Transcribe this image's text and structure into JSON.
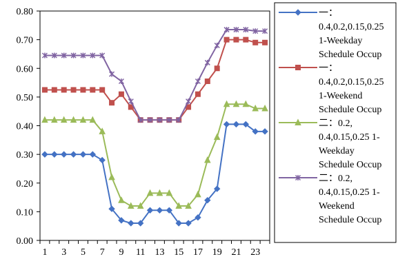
{
  "chart_data": {
    "type": "line",
    "title": "",
    "xlabel": "",
    "ylabel": "",
    "x": [
      1,
      2,
      3,
      4,
      5,
      6,
      7,
      8,
      9,
      10,
      11,
      12,
      13,
      14,
      15,
      16,
      17,
      18,
      19,
      20,
      21,
      22,
      23,
      24
    ],
    "x_tick_labels": [
      "1",
      "3",
      "5",
      "7",
      "9",
      "11",
      "13",
      "15",
      "17",
      "19",
      "21",
      "23"
    ],
    "x_tick_values": [
      1,
      3,
      5,
      7,
      9,
      11,
      13,
      15,
      17,
      19,
      21,
      23
    ],
    "ylim": [
      0,
      0.8
    ],
    "y_ticks": [
      "0.00",
      "0.10",
      "0.20",
      "0.30",
      "0.40",
      "0.50",
      "0.60",
      "0.70",
      "0.80"
    ],
    "y_tick_values": [
      0,
      0.1,
      0.2,
      0.3,
      0.4,
      0.5,
      0.6,
      0.7,
      0.8
    ],
    "grid": false,
    "legend_position": "right",
    "series": [
      {
        "legend_lines": [
          "一：",
          "0.4,0.2,0.15,0.25",
          "1-Weekday",
          "Schedule Occup"
        ],
        "color": "#4472C4",
        "marker": "diamond",
        "values": [
          0.3,
          0.3,
          0.3,
          0.3,
          0.3,
          0.3,
          0.28,
          0.11,
          0.07,
          0.06,
          0.06,
          0.105,
          0.105,
          0.105,
          0.06,
          0.06,
          0.08,
          0.14,
          0.18,
          0.405,
          0.405,
          0.405,
          0.38,
          0.38
        ]
      },
      {
        "legend_lines": [
          "一：",
          "0.4,0.2,0.15,0.25",
          "1-Weekend",
          "Schedule Occup"
        ],
        "color": "#C0504D",
        "marker": "square",
        "values": [
          0.525,
          0.525,
          0.525,
          0.525,
          0.525,
          0.525,
          0.525,
          0.48,
          0.51,
          0.465,
          0.42,
          0.42,
          0.42,
          0.42,
          0.42,
          0.465,
          0.51,
          0.555,
          0.6,
          0.7,
          0.7,
          0.7,
          0.69,
          0.69
        ]
      },
      {
        "legend_lines": [
          "二：0.2,",
          "0.4,0.15,0.25 1-",
          "Weekday",
          "Schedule Occup"
        ],
        "color": "#9BBB59",
        "marker": "triangle",
        "values": [
          0.42,
          0.42,
          0.42,
          0.42,
          0.42,
          0.42,
          0.38,
          0.22,
          0.14,
          0.12,
          0.12,
          0.165,
          0.165,
          0.165,
          0.12,
          0.12,
          0.16,
          0.28,
          0.36,
          0.475,
          0.475,
          0.475,
          0.46,
          0.46
        ]
      },
      {
        "legend_lines": [
          "二：0.2,",
          "0.4,0.15,0.25 1-",
          "Weekend",
          "Schedule Occup"
        ],
        "color": "#8064A2",
        "marker": "x",
        "values": [
          0.645,
          0.645,
          0.645,
          0.645,
          0.645,
          0.645,
          0.645,
          0.58,
          0.555,
          0.485,
          0.42,
          0.42,
          0.42,
          0.42,
          0.42,
          0.485,
          0.555,
          0.62,
          0.68,
          0.735,
          0.735,
          0.735,
          0.73,
          0.73
        ]
      }
    ]
  }
}
